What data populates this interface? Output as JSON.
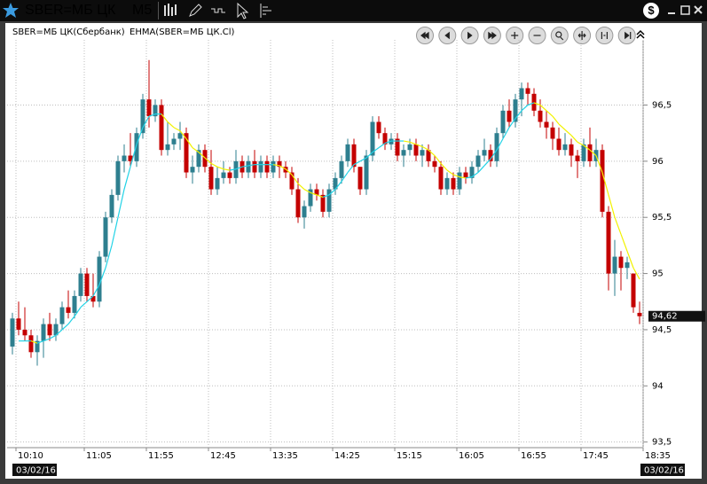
{
  "header": {
    "symbol": "SBER=МБ ЦК",
    "interval": "M5"
  },
  "chart_data": {
    "type": "candlestick",
    "instrument_label": "SBER=МБ ЦК(Сбербанк)",
    "categories": [
      "10:10",
      null,
      null,
      null,
      null,
      null,
      null,
      null,
      null,
      null,
      null,
      "11:05",
      null,
      null,
      null,
      null,
      null,
      null,
      null,
      null,
      null,
      "11:55",
      null,
      null,
      null,
      null,
      null,
      null,
      null,
      null,
      null,
      "12:45",
      null,
      null,
      null,
      null,
      null,
      null,
      null,
      null,
      null,
      "13:35",
      null,
      null,
      null,
      null,
      null,
      null,
      null,
      null,
      null,
      "14:25",
      null,
      null,
      null,
      null,
      null,
      null,
      null,
      null,
      null,
      "15:15",
      null,
      null,
      null,
      null,
      null,
      null,
      null,
      null,
      null,
      "16:05",
      null,
      null,
      null,
      null,
      null,
      null,
      null,
      null,
      null,
      "16:55",
      null,
      null,
      null,
      null,
      null,
      null,
      null,
      null,
      null,
      "17:45",
      null,
      null,
      null,
      null,
      null,
      null,
      null,
      null,
      null,
      "18:35"
    ],
    "open": [
      94.35,
      94.6,
      94.5,
      94.45,
      94.3,
      94.4,
      94.55,
      94.45,
      94.55,
      94.7,
      94.65,
      94.8,
      95.0,
      94.8,
      94.75,
      95.15,
      95.5,
      95.7,
      96.0,
      96.05,
      96.0,
      96.25,
      96.55,
      96.4,
      96.5,
      96.1,
      96.15,
      96.2,
      96.25,
      95.9,
      95.95,
      96.1,
      95.95,
      95.75,
      95.85,
      95.9,
      95.85,
      96.0,
      95.9,
      96.0,
      95.9,
      96.0,
      95.9,
      96.0,
      95.95,
      95.9,
      95.75,
      95.5,
      95.6,
      95.75,
      95.7,
      95.55,
      95.75,
      95.85,
      96.0,
      96.15,
      95.95,
      95.75,
      96.05,
      96.35,
      96.25,
      96.15,
      96.2,
      96.05,
      96.1,
      96.15,
      96.05,
      96.1,
      96.0,
      95.95,
      95.75,
      95.85,
      95.75,
      95.9,
      95.85,
      95.95,
      96.05,
      96.1,
      96.0,
      96.25,
      96.45,
      96.35,
      96.55,
      96.65,
      96.6,
      96.45,
      96.35,
      96.3,
      96.2,
      96.1,
      96.15,
      96.05,
      96.0,
      96.15,
      96.0,
      96.1,
      95.55,
      95.0,
      95.15,
      95.05,
      95.0,
      94.65
    ],
    "high": [
      94.65,
      94.75,
      94.7,
      94.5,
      94.45,
      94.6,
      94.65,
      94.6,
      94.75,
      94.85,
      94.85,
      95.05,
      95.05,
      95.0,
      95.2,
      95.55,
      95.75,
      96.05,
      96.15,
      96.25,
      96.3,
      96.6,
      96.9,
      96.55,
      96.55,
      96.35,
      96.25,
      96.35,
      96.3,
      96.05,
      96.15,
      96.15,
      96.1,
      95.95,
      96.0,
      95.95,
      96.1,
      96.05,
      96.05,
      96.1,
      96.05,
      96.05,
      96.05,
      96.05,
      96.0,
      95.95,
      95.85,
      95.65,
      95.8,
      95.8,
      95.75,
      95.8,
      95.9,
      96.05,
      96.2,
      96.2,
      95.95,
      96.1,
      96.4,
      96.4,
      96.3,
      96.25,
      96.25,
      96.15,
      96.2,
      96.2,
      96.15,
      96.15,
      96.05,
      96.0,
      95.9,
      95.9,
      95.95,
      95.95,
      96.0,
      96.1,
      96.2,
      96.15,
      96.3,
      96.5,
      96.55,
      96.6,
      96.7,
      96.7,
      96.65,
      96.55,
      96.45,
      96.35,
      96.3,
      96.25,
      96.2,
      96.1,
      96.2,
      96.3,
      96.2,
      96.15,
      95.6,
      95.3,
      95.2,
      95.15,
      95.0,
      94.75
    ],
    "low": [
      94.28,
      94.45,
      94.4,
      94.25,
      94.18,
      94.25,
      94.4,
      94.4,
      94.5,
      94.6,
      94.6,
      94.75,
      94.75,
      94.7,
      94.7,
      95.1,
      95.45,
      95.65,
      95.9,
      95.95,
      95.95,
      96.2,
      96.3,
      96.35,
      96.05,
      96.05,
      96.1,
      96.1,
      95.85,
      95.8,
      95.9,
      95.9,
      95.7,
      95.7,
      95.8,
      95.8,
      95.8,
      95.85,
      95.85,
      95.85,
      95.85,
      95.85,
      95.85,
      95.85,
      95.85,
      95.7,
      95.45,
      95.4,
      95.55,
      95.65,
      95.5,
      95.5,
      95.7,
      95.8,
      95.95,
      95.9,
      95.7,
      95.7,
      96.0,
      96.2,
      96.1,
      96.1,
      96.0,
      95.95,
      96.05,
      96.0,
      95.95,
      95.95,
      95.9,
      95.7,
      95.7,
      95.7,
      95.7,
      95.8,
      95.8,
      95.9,
      96.0,
      95.95,
      95.95,
      96.2,
      96.3,
      96.3,
      96.4,
      96.5,
      96.4,
      96.3,
      96.2,
      96.1,
      96.05,
      96.05,
      95.95,
      95.85,
      95.95,
      95.95,
      95.95,
      95.5,
      94.85,
      94.8,
      94.85,
      94.95,
      94.65,
      94.55
    ],
    "close": [
      94.6,
      94.5,
      94.45,
      94.3,
      94.4,
      94.55,
      94.45,
      94.55,
      94.7,
      94.65,
      94.8,
      95.0,
      94.8,
      94.75,
      95.15,
      95.5,
      95.7,
      96.0,
      96.05,
      96.0,
      96.25,
      96.55,
      96.4,
      96.5,
      96.1,
      96.15,
      96.2,
      96.25,
      95.9,
      95.95,
      96.1,
      95.95,
      95.75,
      95.85,
      95.9,
      95.85,
      96.0,
      95.9,
      96.0,
      95.9,
      96.0,
      95.9,
      96.0,
      95.95,
      95.9,
      95.75,
      95.5,
      95.6,
      95.75,
      95.7,
      95.55,
      95.75,
      95.85,
      96.0,
      96.15,
      95.95,
      95.75,
      96.05,
      96.35,
      96.25,
      96.15,
      96.2,
      96.05,
      96.1,
      96.15,
      96.05,
      96.1,
      96.0,
      95.95,
      95.75,
      95.85,
      95.75,
      95.9,
      95.85,
      95.95,
      96.05,
      96.1,
      96.0,
      96.25,
      96.45,
      96.35,
      96.55,
      96.65,
      96.6,
      96.45,
      96.35,
      96.3,
      96.2,
      96.1,
      96.15,
      96.05,
      96.0,
      96.15,
      96.0,
      96.1,
      95.55,
      95.0,
      95.15,
      95.05,
      95.1,
      94.7,
      94.62
    ],
    "up_color": "#2e7f8f",
    "down_color": "#c40000",
    "indicator": {
      "name": "EHMA(SBER=МБ ЦК.Cl)",
      "rising_color": "#22d3e6",
      "falling_color": "#f2f200",
      "values": [
        null,
        94.4,
        94.4,
        94.4,
        94.38,
        94.4,
        94.42,
        94.45,
        94.5,
        94.55,
        94.62,
        94.7,
        94.75,
        94.8,
        94.9,
        95.05,
        95.25,
        95.5,
        95.75,
        95.95,
        96.15,
        96.3,
        96.4,
        96.42,
        96.42,
        96.35,
        96.3,
        96.27,
        96.2,
        96.12,
        96.08,
        96.03,
        95.98,
        95.95,
        95.93,
        95.92,
        95.93,
        95.95,
        95.96,
        95.97,
        95.97,
        95.97,
        95.97,
        95.96,
        95.93,
        95.88,
        95.8,
        95.75,
        95.72,
        95.7,
        95.68,
        95.7,
        95.75,
        95.82,
        95.9,
        95.97,
        96.0,
        96.03,
        96.08,
        96.12,
        96.16,
        96.18,
        96.18,
        96.18,
        96.17,
        96.15,
        96.13,
        96.1,
        96.05,
        95.98,
        95.92,
        95.88,
        95.86,
        95.85,
        95.86,
        95.9,
        95.96,
        96.02,
        96.1,
        96.2,
        96.3,
        96.38,
        96.45,
        96.5,
        96.52,
        96.5,
        96.45,
        96.4,
        96.33,
        96.28,
        96.23,
        96.17,
        96.14,
        96.1,
        96.05,
        95.9,
        95.7,
        95.5,
        95.35,
        95.2,
        95.05,
        94.95
      ]
    },
    "last_price_label": "94,62",
    "date_labels": [
      "03/02/16",
      "03/02/16"
    ],
    "ylim": [
      93.45,
      97.08
    ],
    "yticks": [
      {
        "value": 93.5,
        "label": "93,5"
      },
      94,
      {
        "value": 94.5,
        "label": "94,5"
      },
      95,
      {
        "value": 95.5,
        "label": "95,5"
      },
      96,
      {
        "value": 96.5,
        "label": "96,5"
      }
    ],
    "grid": true
  }
}
